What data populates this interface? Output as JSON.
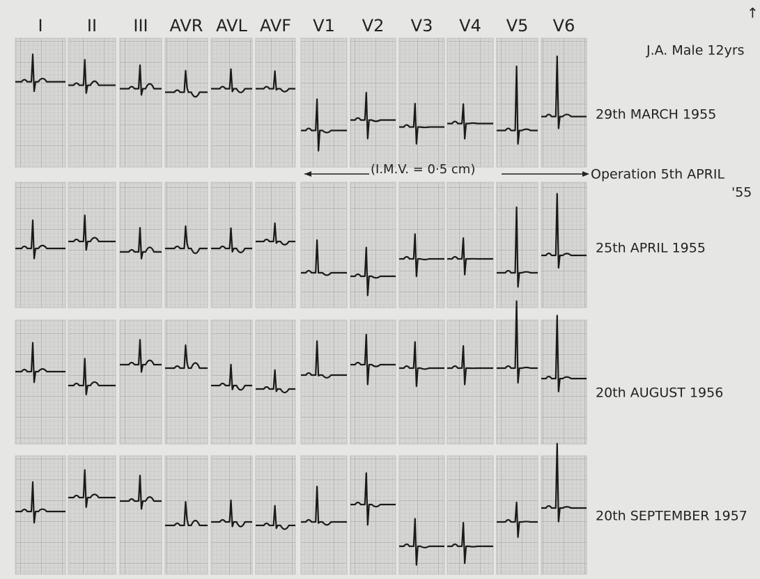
{
  "header": {
    "leads": [
      "I",
      "II",
      "III",
      "AVR",
      "AVL",
      "AVF",
      "V1",
      "V2",
      "V3",
      "V4",
      "V5",
      "V6"
    ],
    "subject": "J.A. Male 12yrs"
  },
  "rows": [
    {
      "date": "29th MARCH 1955"
    },
    {
      "date": "25th APRIL 1955"
    },
    {
      "date": "20th AUGUST 1956"
    },
    {
      "date": "20th SEPTEMBER 1957"
    }
  ],
  "annotations": {
    "imv": "(I.M.V. = 0·5 cm)",
    "operation": [
      "Operation 5th APRIL",
      "'55"
    ]
  }
}
